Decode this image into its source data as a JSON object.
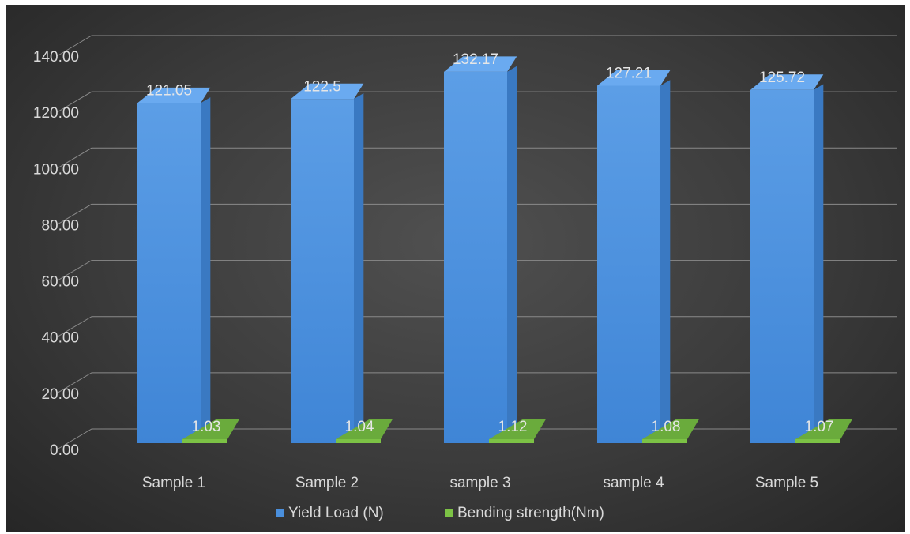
{
  "chart_data": {
    "type": "bar",
    "categories": [
      "Sample 1",
      "Sample 2",
      "sample 3",
      "sample 4",
      "Sample 5"
    ],
    "series": [
      {
        "name": "Yield Load (N)",
        "values": [
          121.05,
          122.5,
          132.17,
          127.21,
          125.72
        ],
        "labels": [
          "121.05",
          "122.5",
          "132.17",
          "127.21",
          "125.72"
        ],
        "color": "#4a8fdc"
      },
      {
        "name": "Bending strength(Nm)",
        "values": [
          1.03,
          1.04,
          1.12,
          1.08,
          1.07
        ],
        "labels": [
          "1.03",
          "1.04",
          "1.12",
          "1.08",
          "1.07"
        ],
        "color": "#7cc245"
      }
    ],
    "yticks": [
      "0.00",
      "20.00",
      "40.00",
      "60.00",
      "80.00",
      "100.00",
      "120.00",
      "140.00"
    ],
    "ylim": [
      0,
      140
    ],
    "grid": true,
    "legend_position": "bottom",
    "three_d": true
  }
}
